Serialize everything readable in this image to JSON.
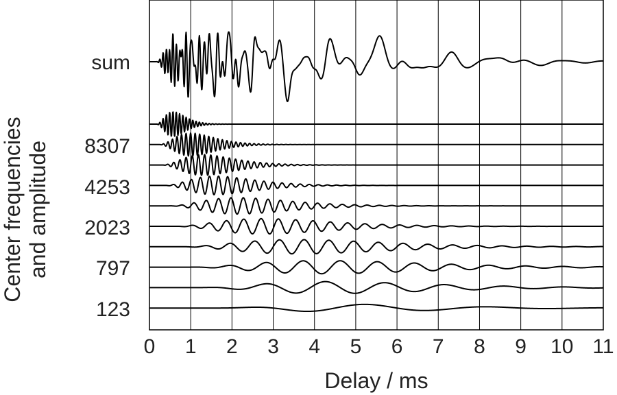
{
  "chart_data": {
    "type": "line",
    "xlabel": "Delay / ms",
    "ylabel_lines": [
      "Center frequencies",
      "and amplitude"
    ],
    "xlim": [
      0,
      11
    ],
    "xticks": [
      0,
      1,
      2,
      3,
      4,
      5,
      6,
      7,
      8,
      9,
      10,
      11
    ],
    "grid": true,
    "colors": {
      "line": "#000000",
      "grid": "#000000",
      "text": "#222222"
    },
    "channel_tick_labels": [
      "sum",
      "8307",
      "4253",
      "2023",
      "797",
      "123"
    ],
    "sum_trace": {
      "label": "sum",
      "onset_ms": 0.2,
      "peak_delay_ms": 0.55
    },
    "channels": [
      {
        "order": 1,
        "label": "",
        "approx_cycle_ms": 0.08,
        "envelope_start_ms": 0.15,
        "envelope_end_ms": 1.4,
        "relative_amplitude": 0.9
      },
      {
        "order": 2,
        "label": "8307",
        "approx_cycle_ms": 0.11,
        "envelope_start_ms": 0.2,
        "envelope_end_ms": 2.6,
        "relative_amplitude": 0.8
      },
      {
        "order": 3,
        "label": "",
        "approx_cycle_ms": 0.15,
        "envelope_start_ms": 0.25,
        "envelope_end_ms": 3.4,
        "relative_amplitude": 0.7
      },
      {
        "order": 4,
        "label": "4253",
        "approx_cycle_ms": 0.22,
        "envelope_start_ms": 0.3,
        "envelope_end_ms": 4.2,
        "relative_amplitude": 0.6
      },
      {
        "order": 5,
        "label": "",
        "approx_cycle_ms": 0.3,
        "envelope_start_ms": 0.4,
        "envelope_end_ms": 5.6,
        "relative_amplitude": 0.5
      },
      {
        "order": 6,
        "label": "2023",
        "approx_cycle_ms": 0.42,
        "envelope_start_ms": 0.5,
        "envelope_end_ms": 7.2,
        "relative_amplitude": 0.45
      },
      {
        "order": 7,
        "label": "",
        "approx_cycle_ms": 0.6,
        "envelope_start_ms": 0.6,
        "envelope_end_ms": 9.5,
        "relative_amplitude": 0.4
      },
      {
        "order": 8,
        "label": "797",
        "approx_cycle_ms": 0.9,
        "envelope_start_ms": 0.8,
        "envelope_end_ms": 11,
        "relative_amplitude": 0.35
      },
      {
        "order": 9,
        "label": "",
        "approx_cycle_ms": 1.45,
        "envelope_start_ms": 1.0,
        "envelope_end_ms": 11,
        "relative_amplitude": 0.3
      },
      {
        "order": 10,
        "label": "123",
        "approx_cycle_ms": 3.0,
        "envelope_start_ms": 1.5,
        "envelope_end_ms": 11,
        "relative_amplitude": 0.1
      }
    ]
  }
}
